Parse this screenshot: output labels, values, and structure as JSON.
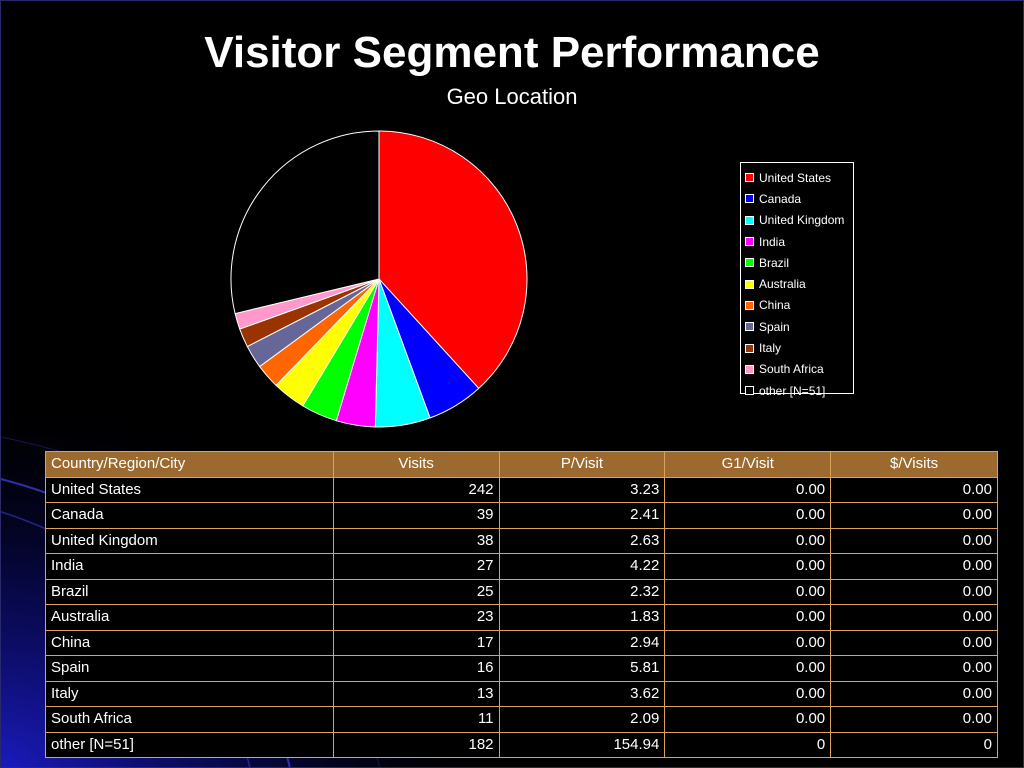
{
  "title": "Visitor Segment Performance",
  "subtitle": "Geo Location",
  "chart_data": {
    "type": "pie",
    "categories": [
      "United States",
      "Canada",
      "United Kingdom",
      "India",
      "Brazil",
      "Australia",
      "China",
      "Spain",
      "Italy",
      "South Africa",
      "other [N=51]"
    ],
    "values": [
      242,
      39,
      38,
      27,
      25,
      23,
      17,
      16,
      13,
      11,
      182
    ],
    "colors": [
      "#ff0000",
      "#0000ff",
      "#00ffff",
      "#ff00ff",
      "#00ff00",
      "#ffff00",
      "#ff6600",
      "#666699",
      "#993300",
      "#ff99cc",
      "#000000"
    ],
    "legend_position": "right"
  },
  "table": {
    "headers": [
      "Country/Region/City",
      "Visits",
      "P/Visit",
      "G1/Visit",
      "$/Visits"
    ],
    "rows": [
      [
        "United States",
        "242",
        "3.23",
        "0.00",
        "0.00"
      ],
      [
        "Canada",
        "39",
        "2.41",
        "0.00",
        "0.00"
      ],
      [
        "United Kingdom",
        "38",
        "2.63",
        "0.00",
        "0.00"
      ],
      [
        "India",
        "27",
        "4.22",
        "0.00",
        "0.00"
      ],
      [
        "Brazil",
        "25",
        "2.32",
        "0.00",
        "0.00"
      ],
      [
        "Australia",
        "23",
        "1.83",
        "0.00",
        "0.00"
      ],
      [
        "China",
        "17",
        "2.94",
        "0.00",
        "0.00"
      ],
      [
        "Spain",
        "16",
        "5.81",
        "0.00",
        "0.00"
      ],
      [
        "Italy",
        "13",
        "3.62",
        "0.00",
        "0.00"
      ],
      [
        "South Africa",
        "11",
        "2.09",
        "0.00",
        "0.00"
      ],
      [
        "other [N=51]",
        "182",
        "154.94",
        "0",
        "0"
      ]
    ]
  },
  "colors": {
    "background": "#000000",
    "table_header_bg": "#9c6a2e",
    "table_border": "#d9a35c",
    "decoration": "#1a1aa6"
  }
}
